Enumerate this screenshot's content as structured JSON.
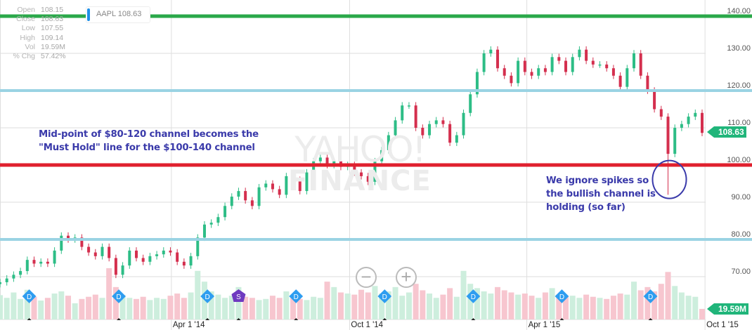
{
  "quote": {
    "rows": [
      {
        "label": "Open",
        "value": "108.15"
      },
      {
        "label": "Close",
        "value": "108.63"
      },
      {
        "label": "Low",
        "value": "107.55"
      },
      {
        "label": "High",
        "value": "109.14"
      },
      {
        "label": "Vol",
        "value": "19.59M"
      },
      {
        "label": "% Chg",
        "value": "57.42%"
      }
    ]
  },
  "legend": {
    "symbol_label": "AAPL 108.63",
    "color": "#1e90e8"
  },
  "watermark": {
    "line1": "YAHOO!",
    "line2": "FINANCE"
  },
  "price_tag": "108.63",
  "volume_tag": "19.59M",
  "zoom": {
    "out_icon": "minus-circle-icon",
    "in_icon": "plus-circle-icon"
  },
  "notes": {
    "left": [
      "Mid-point of $80-120 channel becomes the",
      "\"Must Hold\" line for the $100-140 channel"
    ],
    "right": [
      "We ignore spikes so",
      "the bullish channel is",
      "holding (so far)"
    ],
    "color": "#3a3aaa"
  },
  "chart_data": {
    "type": "candlestick",
    "symbol": "AAPL",
    "ylim": [
      62,
      142
    ],
    "y_ticks": [
      "140.00",
      "130.00",
      "120.00",
      "110.00",
      "100.00",
      "90.00",
      "80.00",
      "70.00"
    ],
    "x_ticks": [
      {
        "date": "2014-04-01",
        "label": "Apr 1 '14"
      },
      {
        "date": "2014-10-01",
        "label": "Oct 1 '14"
      },
      {
        "date": "2015-04-01",
        "label": "Apr 1 '15"
      },
      {
        "date": "2015-10-01",
        "label": "Oct 1 '15"
      }
    ],
    "grid": true,
    "colors": {
      "up": "#2dbd86",
      "down": "#d42f4e",
      "volume_up": "#cdeedd",
      "volume_down": "#f7c6cf"
    },
    "weekly_close": [
      [
        "2013-10-07",
        68.5
      ],
      [
        "2013-10-14",
        69.5
      ],
      [
        "2013-10-21",
        70.5
      ],
      [
        "2013-10-28",
        71.5
      ],
      [
        "2013-11-04",
        74.5
      ],
      [
        "2013-11-11",
        73.5
      ],
      [
        "2013-11-18",
        74
      ],
      [
        "2013-11-25",
        73.5
      ],
      [
        "2013-12-02",
        77
      ],
      [
        "2013-12-09",
        81
      ],
      [
        "2013-12-16",
        80
      ],
      [
        "2013-12-23",
        80.5
      ],
      [
        "2013-12-30",
        78
      ],
      [
        "2014-01-06",
        76.5
      ],
      [
        "2014-01-13",
        75.5
      ],
      [
        "2014-01-20",
        78
      ],
      [
        "2014-01-27",
        75
      ],
      [
        "2014-02-03",
        70.5
      ],
      [
        "2014-02-10",
        73
      ],
      [
        "2014-02-17",
        77
      ],
      [
        "2014-02-24",
        75
      ],
      [
        "2014-03-03",
        74
      ],
      [
        "2014-03-10",
        75.5
      ],
      [
        "2014-03-17",
        76
      ],
      [
        "2014-03-24",
        77
      ],
      [
        "2014-03-31",
        76.5
      ],
      [
        "2014-04-07",
        74
      ],
      [
        "2014-04-14",
        73
      ],
      [
        "2014-04-21",
        75.5
      ],
      [
        "2014-04-28",
        80.5
      ],
      [
        "2014-05-05",
        84
      ],
      [
        "2014-05-12",
        84.5
      ],
      [
        "2014-05-19",
        86
      ],
      [
        "2014-05-26",
        89
      ],
      [
        "2014-06-02",
        91.5
      ],
      [
        "2014-06-09",
        93
      ],
      [
        "2014-06-16",
        90.5
      ],
      [
        "2014-06-23",
        89
      ],
      [
        "2014-06-30",
        94
      ],
      [
        "2014-07-07",
        95
      ],
      [
        "2014-07-14",
        93.5
      ],
      [
        "2014-07-21",
        92
      ],
      [
        "2014-07-28",
        97
      ],
      [
        "2014-08-04",
        96
      ],
      [
        "2014-08-11",
        93
      ],
      [
        "2014-08-18",
        98
      ],
      [
        "2014-08-25",
        101
      ],
      [
        "2014-09-01",
        102
      ],
      [
        "2014-09-08",
        100
      ],
      [
        "2014-09-15",
        101
      ],
      [
        "2014-09-22",
        99.5
      ],
      [
        "2014-09-29",
        100
      ],
      [
        "2014-10-06",
        98
      ],
      [
        "2014-10-13",
        97
      ],
      [
        "2014-10-20",
        95.5
      ],
      [
        "2014-10-27",
        101
      ],
      [
        "2014-11-03",
        104
      ],
      [
        "2014-11-10",
        108
      ],
      [
        "2014-11-17",
        112
      ],
      [
        "2014-11-24",
        116
      ],
      [
        "2014-12-01",
        116
      ],
      [
        "2014-12-08",
        110
      ],
      [
        "2014-12-15",
        108
      ],
      [
        "2014-12-22",
        111
      ],
      [
        "2014-12-29",
        112
      ],
      [
        "2015-01-05",
        111
      ],
      [
        "2015-01-12",
        106
      ],
      [
        "2015-01-19",
        108
      ],
      [
        "2015-01-26",
        114
      ],
      [
        "2015-02-02",
        119
      ],
      [
        "2015-02-09",
        125
      ],
      [
        "2015-02-16",
        130
      ],
      [
        "2015-02-23",
        131
      ],
      [
        "2015-03-02",
        126
      ],
      [
        "2015-03-09",
        124
      ],
      [
        "2015-03-16",
        122
      ],
      [
        "2015-03-23",
        128
      ],
      [
        "2015-03-30",
        125
      ],
      [
        "2015-04-06",
        124
      ],
      [
        "2015-04-13",
        126
      ],
      [
        "2015-04-20",
        125
      ],
      [
        "2015-04-27",
        129
      ],
      [
        "2015-05-04",
        128
      ],
      [
        "2015-05-11",
        125
      ],
      [
        "2015-05-18",
        129
      ],
      [
        "2015-05-25",
        131
      ],
      [
        "2015-06-01",
        128
      ],
      [
        "2015-06-08",
        127
      ],
      [
        "2015-06-15",
        127
      ],
      [
        "2015-06-22",
        126
      ],
      [
        "2015-06-29",
        124
      ],
      [
        "2015-07-06",
        121
      ],
      [
        "2015-07-13",
        126
      ],
      [
        "2015-07-20",
        130
      ],
      [
        "2015-07-27",
        124
      ],
      [
        "2015-08-03",
        120
      ],
      [
        "2015-08-10",
        115
      ],
      [
        "2015-08-17",
        113
      ],
      [
        "2015-08-24",
        103
      ],
      [
        "2015-08-31",
        110
      ],
      [
        "2015-09-07",
        111
      ],
      [
        "2015-09-14",
        113
      ],
      [
        "2015-09-21",
        114
      ],
      [
        "2015-09-28",
        108.63
      ]
    ],
    "spike_low": {
      "date": "2015-08-24",
      "low": 92
    },
    "volume_millions": [
      45,
      40,
      50,
      38,
      55,
      42,
      35,
      40,
      48,
      52,
      44,
      30,
      38,
      42,
      46,
      40,
      95,
      60,
      45,
      40,
      38,
      42,
      36,
      40,
      38,
      44,
      48,
      40,
      50,
      90,
      70,
      52,
      46,
      40,
      44,
      60,
      42,
      40,
      36,
      38,
      44,
      40,
      52,
      40,
      38,
      36,
      42,
      40,
      70,
      60,
      50,
      48,
      46,
      55,
      50,
      62,
      48,
      52,
      60,
      44,
      50,
      66,
      54,
      48,
      40,
      46,
      58,
      42,
      90,
      66,
      58,
      52,
      48,
      60,
      54,
      50,
      46,
      48,
      44,
      40,
      50,
      58,
      46,
      42,
      44,
      40,
      46,
      42,
      40,
      38,
      44,
      48,
      46,
      70,
      54,
      60,
      52,
      66,
      88,
      62,
      50,
      44,
      42,
      19.59
    ],
    "events": [
      {
        "date": "2013-11-06",
        "type": "D"
      },
      {
        "date": "2014-02-06",
        "type": "D"
      },
      {
        "date": "2014-05-08",
        "type": "D"
      },
      {
        "date": "2014-06-09",
        "type": "S"
      },
      {
        "date": "2014-08-07",
        "type": "D"
      },
      {
        "date": "2014-11-06",
        "type": "D"
      },
      {
        "date": "2015-02-05",
        "type": "D"
      },
      {
        "date": "2015-05-07",
        "type": "D"
      },
      {
        "date": "2015-08-06",
        "type": "D"
      }
    ],
    "levels": [
      {
        "value": 140,
        "color": "#2aa84a"
      },
      {
        "value": 120,
        "color": "#9ad3e3"
      },
      {
        "value": 100,
        "color": "#e0202e"
      },
      {
        "value": 80,
        "color": "#9ad3e3"
      }
    ],
    "annotation_circle": {
      "date": "2015-08-24",
      "value": 98,
      "color": "#3a3aaa"
    }
  }
}
